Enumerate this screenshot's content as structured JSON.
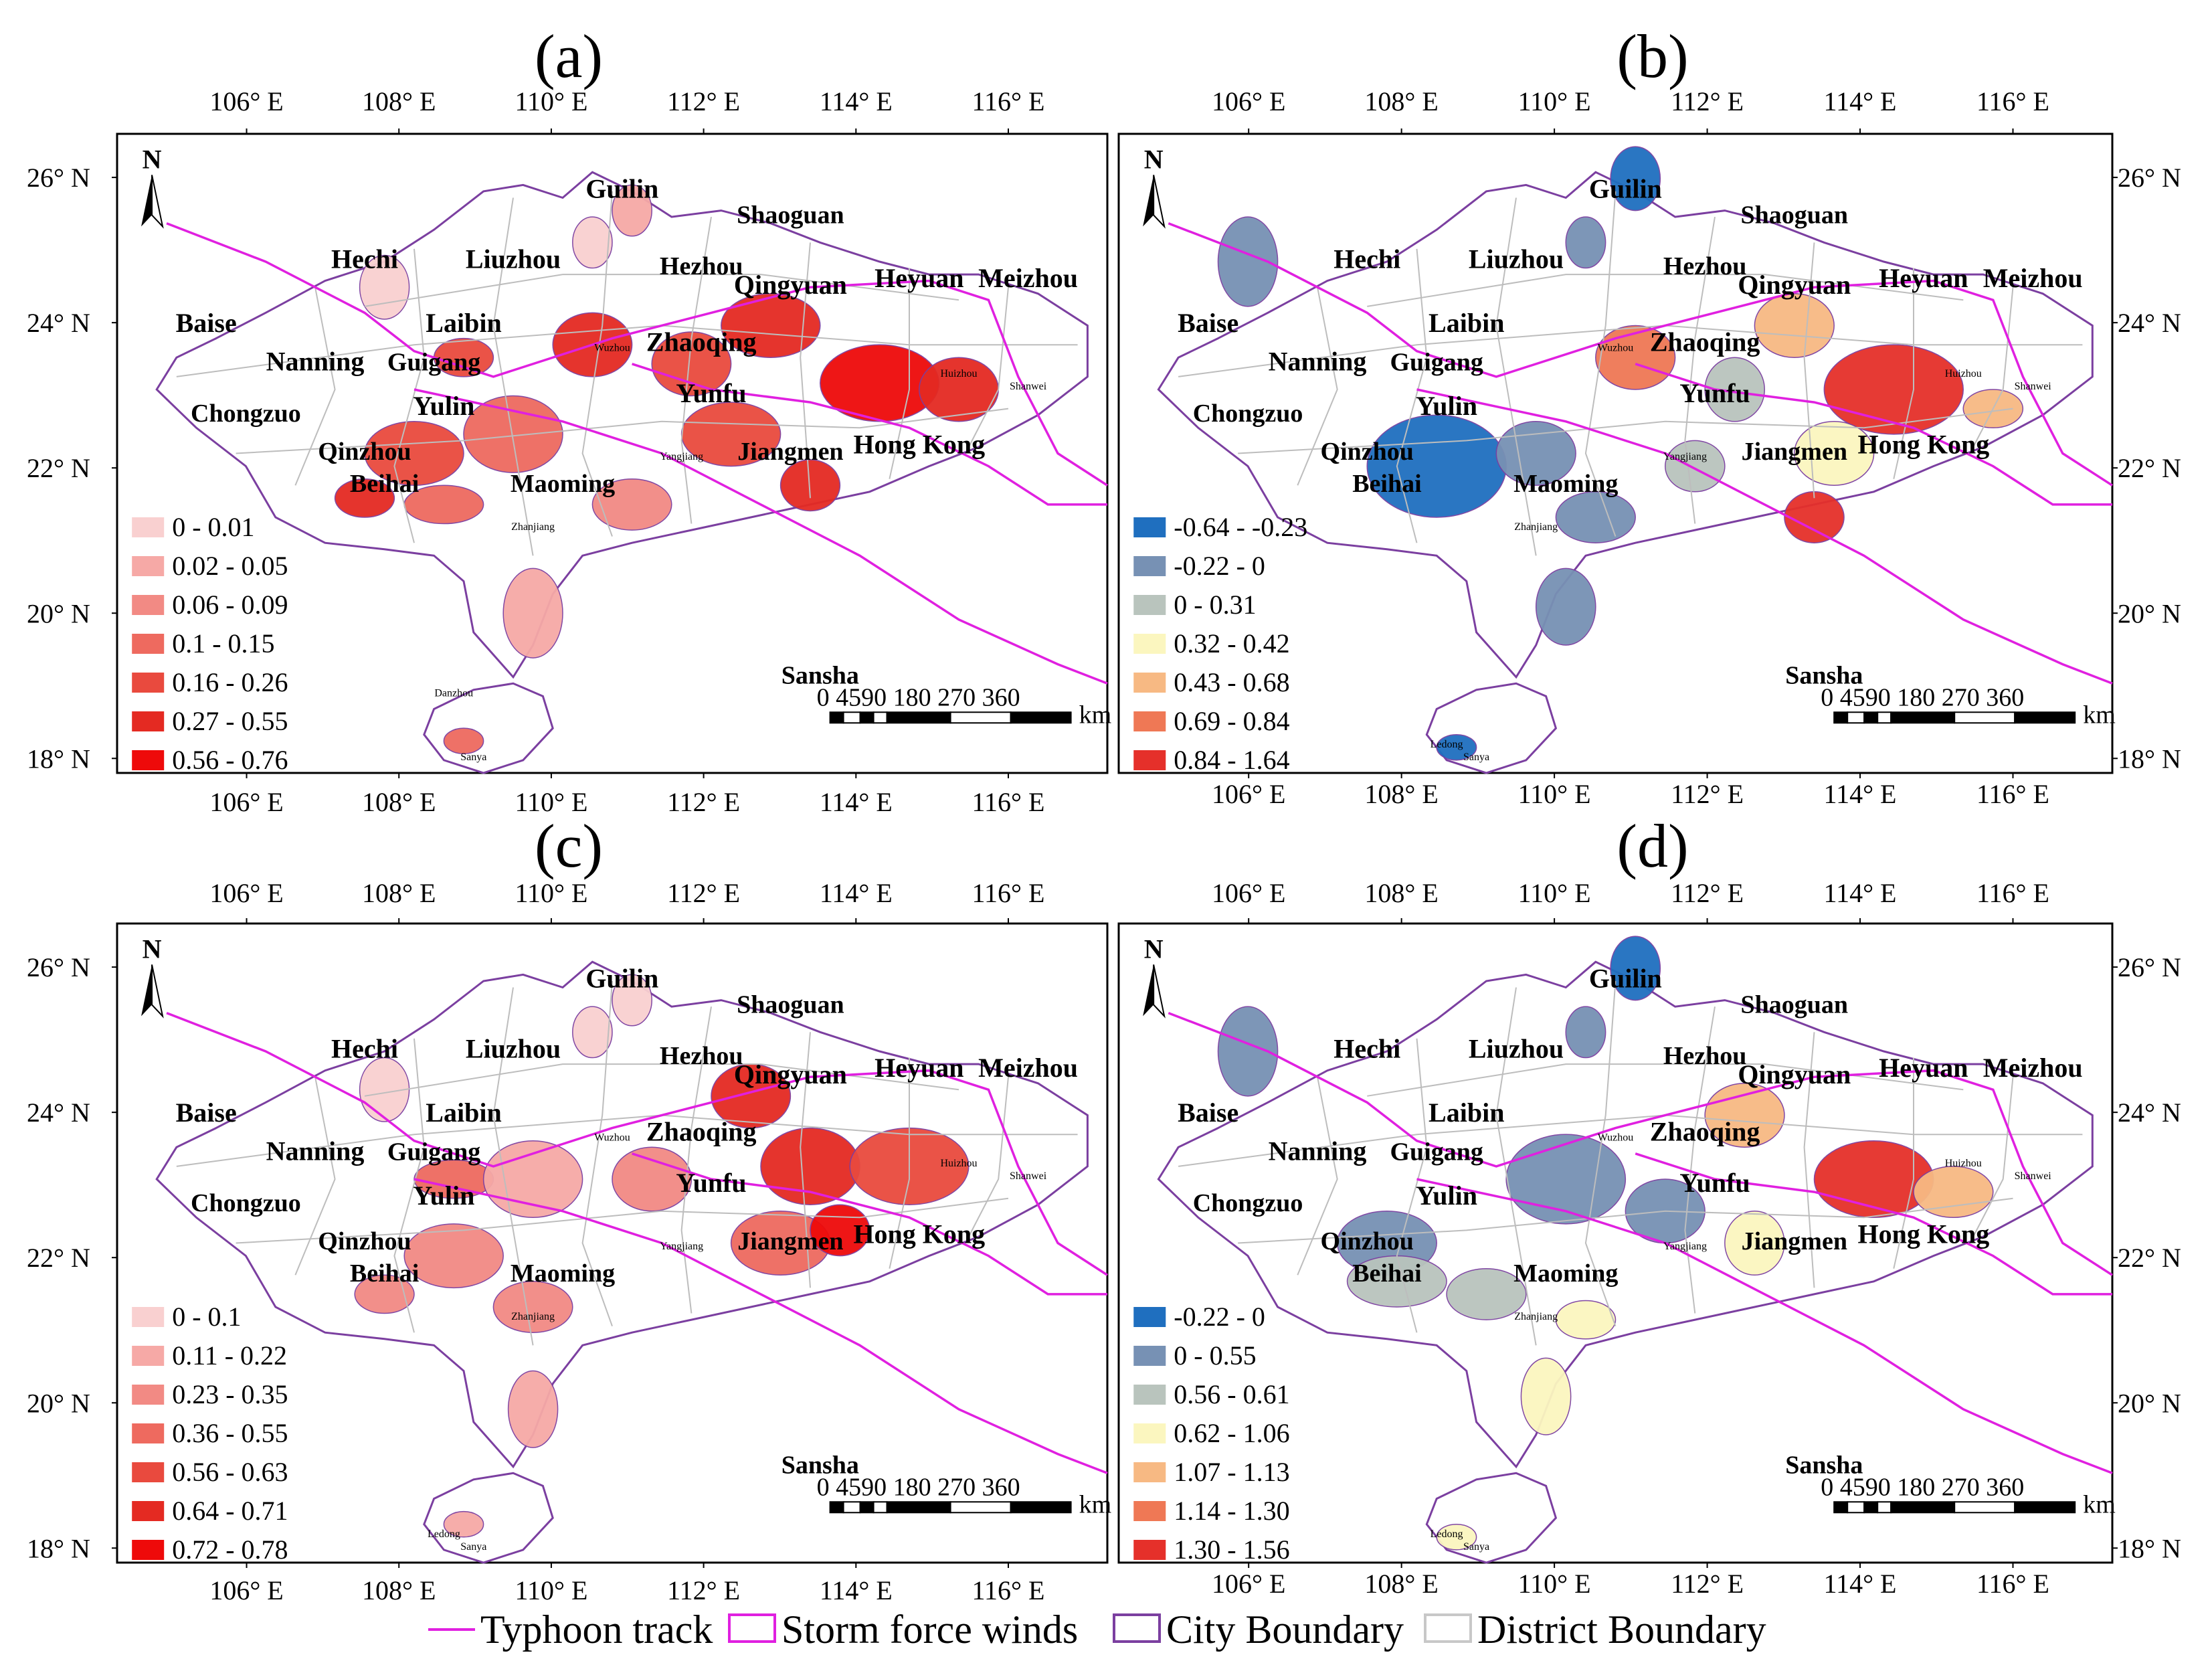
{
  "figure": {
    "footer_legend": [
      {
        "label": "Typhoon track",
        "symbol": "line",
        "color": "#e020e0"
      },
      {
        "label": "Storm force winds",
        "symbol": "box",
        "color": "#e020e0"
      },
      {
        "label": "City Boundary",
        "symbol": "box",
        "color": "#7b3fa0"
      },
      {
        "label": "District Boundary",
        "symbol": "box",
        "color": "#c8c8c8"
      }
    ],
    "colors": {
      "track": "#e020e0",
      "city_boundary": "#7b3fa0",
      "district_boundary": "#bdbdbd"
    }
  },
  "panels": [
    {
      "letter": "(a)",
      "north": "N",
      "lon_ticks": [
        "106° E",
        "108° E",
        "110° E",
        "112° E",
        "114° E",
        "116° E"
      ],
      "lat_ticks": [
        "26° N",
        "24° N",
        "22° N",
        "20° N",
        "18° N"
      ],
      "lat_side": "left",
      "cities": [
        "Guilin",
        "Shaoguan",
        "Hechi",
        "Liuzhou",
        "Hezhou",
        "Qingyuan",
        "Heyuan",
        "Meizhou",
        "Baise",
        "Laibin",
        "Nanning",
        "Guigang",
        "Zhaoqing",
        "Yunfu",
        "Yulin",
        "Chongzuo",
        "Qinzhou",
        "Jiangmen",
        "Hong Kong",
        "Beihai",
        "Maoming",
        "Sansha"
      ],
      "small_labels": [
        "Wuzhou",
        "Huizhou",
        "Shanwei",
        "Yangjiang",
        "Zhanjiang",
        "Sanya",
        "Danzhou"
      ],
      "legend": [
        {
          "label": "0 - 0.01",
          "color": "#f9d0d0"
        },
        {
          "label": "0.02 - 0.05",
          "color": "#f6a9a6"
        },
        {
          "label": "0.06 - 0.09",
          "color": "#f28a84"
        },
        {
          "label": "0.1 - 0.15",
          "color": "#ee6a5f"
        },
        {
          "label": "0.16 - 0.26",
          "color": "#e94a3e"
        },
        {
          "label": "0.27 - 0.55",
          "color": "#e42a22"
        },
        {
          "label": "0.56 - 0.76",
          "color": "#ee0a0a"
        }
      ],
      "scale": {
        "numbers": "0 4590   180  270  360",
        "unit": "km"
      }
    },
    {
      "letter": "(b)",
      "north": "N",
      "lon_ticks": [
        "106° E",
        "108° E",
        "110° E",
        "112° E",
        "114° E",
        "116° E"
      ],
      "lat_ticks": [
        "26° N",
        "24° N",
        "22° N",
        "20° N",
        "18° N"
      ],
      "lat_side": "right",
      "cities": [
        "Guilin",
        "Shaoguan",
        "Hechi",
        "Liuzhou",
        "Hezhou",
        "Qingyuan",
        "Heyuan",
        "Meizhou",
        "Baise",
        "Laibin",
        "Nanning",
        "Guigang",
        "Zhaoqing",
        "Yunfu",
        "Yulin",
        "Chongzuo",
        "Qinzhou",
        "Jiangmen",
        "Hong Kong",
        "Beihai",
        "Maoming",
        "Sansha"
      ],
      "small_labels": [
        "Wuzhou",
        "Huizhou",
        "Shanwei",
        "Yangjiang",
        "Zhanjiang",
        "Sanya",
        "Ledong"
      ],
      "legend": [
        {
          "label": "-0.64 - -0.23",
          "color": "#1f6fbf"
        },
        {
          "label": "-0.22 - 0",
          "color": "#7791b4"
        },
        {
          "label": "0 - 0.31",
          "color": "#b9c4bd"
        },
        {
          "label": "0.32 - 0.42",
          "color": "#fbf6bf"
        },
        {
          "label": "0.43 - 0.68",
          "color": "#f7b983"
        },
        {
          "label": "0.69 - 0.84",
          "color": "#ef7855"
        },
        {
          "label": "0.84 - 1.64",
          "color": "#e5302a"
        }
      ],
      "scale": {
        "numbers": "0 4590   180  270  360",
        "unit": "km"
      }
    },
    {
      "letter": "(c)",
      "north": "N",
      "lon_ticks": [
        "106° E",
        "108° E",
        "110° E",
        "112° E",
        "114° E",
        "116° E"
      ],
      "lat_ticks": [
        "26° N",
        "24° N",
        "22° N",
        "20° N",
        "18° N"
      ],
      "lat_side": "left",
      "cities": [
        "Guilin",
        "Shaoguan",
        "Hechi",
        "Liuzhou",
        "Hezhou",
        "Qingyuan",
        "Heyuan",
        "Meizhou",
        "Baise",
        "Laibin",
        "Nanning",
        "Guigang",
        "Zhaoqing",
        "Yunfu",
        "Yulin",
        "Chongzuo",
        "Qinzhou",
        "Jiangmen",
        "Hong Kong",
        "Beihai",
        "Maoming",
        "Sansha"
      ],
      "small_labels": [
        "Wuzhou",
        "Huizhou",
        "Shanwei",
        "Yangjiang",
        "Zhanjiang",
        "Sanya",
        "Ledong"
      ],
      "legend": [
        {
          "label": "0 - 0.1",
          "color": "#f9d0d0"
        },
        {
          "label": "0.11 - 0.22",
          "color": "#f6a9a6"
        },
        {
          "label": "0.23 - 0.35",
          "color": "#f28a84"
        },
        {
          "label": "0.36 - 0.55",
          "color": "#ee6a5f"
        },
        {
          "label": "0.56 - 0.63",
          "color": "#e94a3e"
        },
        {
          "label": "0.64 - 0.71",
          "color": "#e42a22"
        },
        {
          "label": "0.72 - 0.78",
          "color": "#ee0a0a"
        }
      ],
      "scale": {
        "numbers": "0 4590   180  270  360",
        "unit": "km"
      }
    },
    {
      "letter": "(d)",
      "north": "N",
      "lon_ticks": [
        "106° E",
        "108° E",
        "110° E",
        "112° E",
        "114° E",
        "116° E"
      ],
      "lat_ticks": [
        "26° N",
        "24° N",
        "22° N",
        "20° N",
        "18° N"
      ],
      "lat_side": "right",
      "cities": [
        "Guilin",
        "Shaoguan",
        "Hechi",
        "Liuzhou",
        "Hezhou",
        "Qingyuan",
        "Heyuan",
        "Meizhou",
        "Baise",
        "Laibin",
        "Nanning",
        "Guigang",
        "Zhaoqing",
        "Yunfu",
        "Yulin",
        "Chongzuo",
        "Qinzhou",
        "Jiangmen",
        "Hong Kong",
        "Beihai",
        "Maoming",
        "Sansha"
      ],
      "small_labels": [
        "Wuzhou",
        "Huizhou",
        "Shanwei",
        "Yangjiang",
        "Zhanjiang",
        "Sanya",
        "Ledong"
      ],
      "legend": [
        {
          "label": "-0.22 - 0",
          "color": "#1f6fbf"
        },
        {
          "label": "0 - 0.55",
          "color": "#7791b4"
        },
        {
          "label": "0.56  - 0.61",
          "color": "#b9c4bd"
        },
        {
          "label": "0.62 - 1.06",
          "color": "#fbf6bf"
        },
        {
          "label": "1.07 - 1.13",
          "color": "#f7b983"
        },
        {
          "label": "1.14 - 1.30",
          "color": "#ef7855"
        },
        {
          "label": "1.30 - 1.56",
          "color": "#e5302a"
        }
      ],
      "scale": {
        "numbers": "0 4590   180  270  360",
        "unit": "km"
      }
    }
  ]
}
